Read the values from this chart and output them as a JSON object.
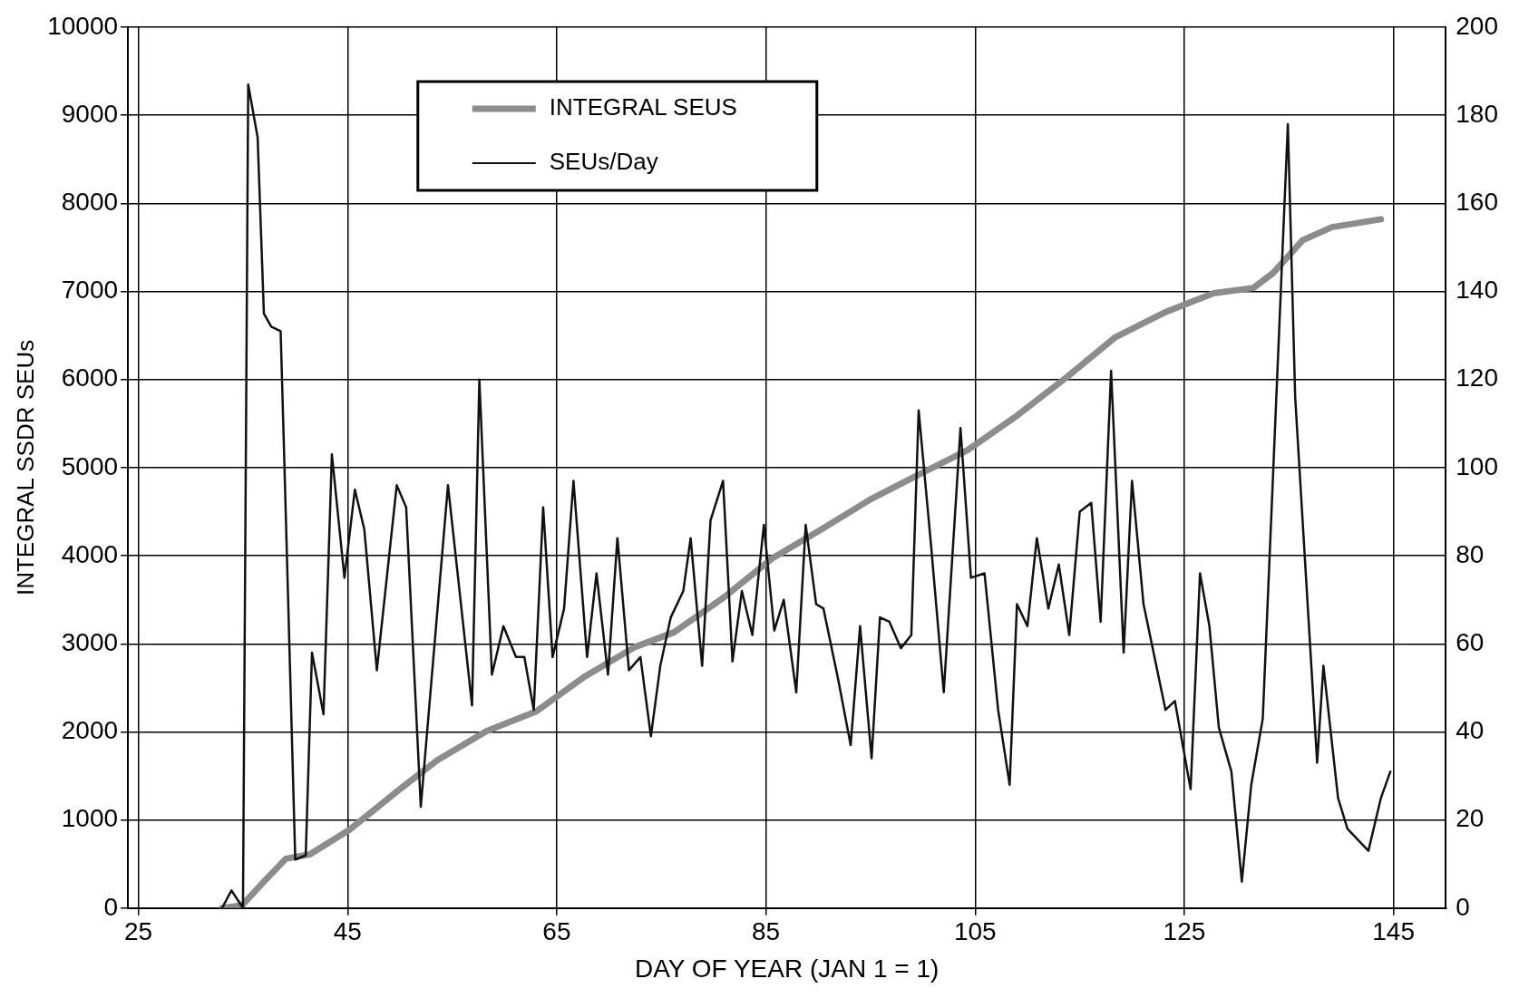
{
  "chart_data": {
    "type": "line",
    "xlabel": "DAY OF YEAR (JAN 1 = 1)",
    "ylabel": "INTEGRAL SSDR SEUs",
    "xlim": [
      24,
      150
    ],
    "xticks": [
      25,
      45,
      65,
      85,
      105,
      125,
      145
    ],
    "ylim": [
      0,
      10000
    ],
    "yticks": [
      0,
      1000,
      2000,
      3000,
      4000,
      5000,
      6000,
      7000,
      8000,
      9000,
      10000
    ],
    "y2lim": [
      0,
      200
    ],
    "y2ticks": [
      0,
      20,
      40,
      60,
      80,
      100,
      120,
      140,
      160,
      180,
      200
    ],
    "grid": true,
    "legend": "top",
    "marker": "none",
    "line_style": "solid",
    "series": [
      {
        "name": "INTEGRAL SEUS",
        "color": "#8c8c8c",
        "axis": "y",
        "x": [
          33,
          34.9,
          37,
          39.1,
          41.4,
          45.2,
          49.9,
          53.6,
          58.3,
          63,
          67.7,
          72.4,
          76.2,
          80.9,
          85.6,
          90.3,
          95,
          99.6,
          104.3,
          109,
          113.8,
          118.4,
          123.1,
          127.8,
          131.6,
          133.5,
          136.3,
          139.1,
          143.8
        ],
        "values": [
          0,
          30,
          300,
          560,
          610,
          890,
          1340,
          1680,
          2010,
          2230,
          2630,
          2960,
          3130,
          3520,
          3970,
          4300,
          4640,
          4920,
          5200,
          5590,
          6030,
          6480,
          6760,
          6980,
          7040,
          7210,
          7580,
          7730,
          7820
        ]
      },
      {
        "name": "SEUs/Day",
        "color": "#111111",
        "axis": "y2",
        "x": [
          33,
          33.9,
          35,
          35.5,
          36.4,
          37,
          37.7,
          38.6,
          38.9,
          40,
          41,
          41.6,
          42.7,
          43.5,
          44.7,
          45.7,
          46.6,
          47.8,
          49.7,
          50.6,
          52,
          54.6,
          56.9,
          57.6,
          58.8,
          59.9,
          61.1,
          61.9,
          62.8,
          63.7,
          64.6,
          65.7,
          66.6,
          67.9,
          68.8,
          69.9,
          70.8,
          71.9,
          73,
          74,
          74.9,
          75.9,
          77.1,
          77.8,
          78.9,
          79.7,
          80.9,
          81.8,
          82.7,
          83.7,
          84.8,
          85.8,
          86.7,
          87.9,
          88.8,
          89.8,
          90.5,
          91.9,
          93.1,
          94,
          95.1,
          95.9,
          96.8,
          97.9,
          98.9,
          99.6,
          100.8,
          102,
          103.6,
          104.6,
          105.9,
          107.2,
          108.3,
          109,
          110,
          110.9,
          112,
          113,
          114,
          115,
          116.1,
          117,
          118,
          119.2,
          120,
          121.1,
          123.2,
          124.1,
          125.6,
          126.5,
          127.4,
          128.3,
          129.5,
          130.5,
          131.4,
          132.5,
          134.9,
          135.6,
          137.7,
          138.3,
          139.7,
          140.6,
          142.6,
          143.8,
          144.7
        ],
        "values": [
          0,
          4,
          0,
          187,
          175,
          135,
          132,
          131,
          106,
          11,
          12,
          58,
          44,
          103,
          75,
          95,
          86,
          54,
          96,
          91,
          23,
          96,
          46,
          120,
          53,
          64,
          57,
          57,
          45,
          91,
          57,
          68,
          97,
          57,
          76,
          53,
          84,
          54,
          57,
          39,
          55,
          66,
          72,
          84,
          55,
          88,
          97,
          56,
          72,
          62,
          87,
          63,
          70,
          49,
          87,
          69,
          68,
          52,
          37,
          64,
          34,
          66,
          65,
          59,
          62,
          113,
          82,
          49,
          109,
          75,
          76,
          45,
          28,
          69,
          64,
          84,
          68,
          78,
          62,
          90,
          92,
          65,
          122,
          58,
          97,
          69,
          45,
          47,
          27,
          76,
          64,
          41,
          31,
          6,
          28,
          43,
          178,
          116,
          33,
          55,
          25,
          18,
          13,
          25,
          31
        ]
      }
    ]
  }
}
